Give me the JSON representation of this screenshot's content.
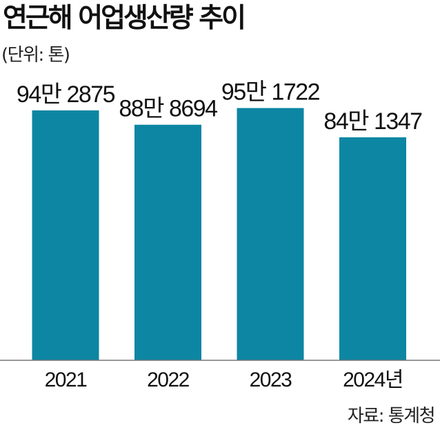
{
  "title": "연근해 어업생산량 추이",
  "unit_label": "(단위: 톤)",
  "source": "자료: 통계청",
  "colors": {
    "bar": "#0d86a3",
    "axis": "#777777"
  },
  "chart_data": {
    "type": "bar",
    "categories": [
      "2021",
      "2022",
      "2023",
      "2024년"
    ],
    "values": [
      942875,
      888694,
      951722,
      841347
    ],
    "value_labels": [
      "94만 2875",
      "88만 8694",
      "95만 1722",
      "84만 1347"
    ],
    "title": "연근해 어업생산량 추이",
    "ylabel": "(단위: 톤)",
    "ylim": [
      0,
      1000000
    ],
    "grid": false,
    "legend": "none"
  }
}
